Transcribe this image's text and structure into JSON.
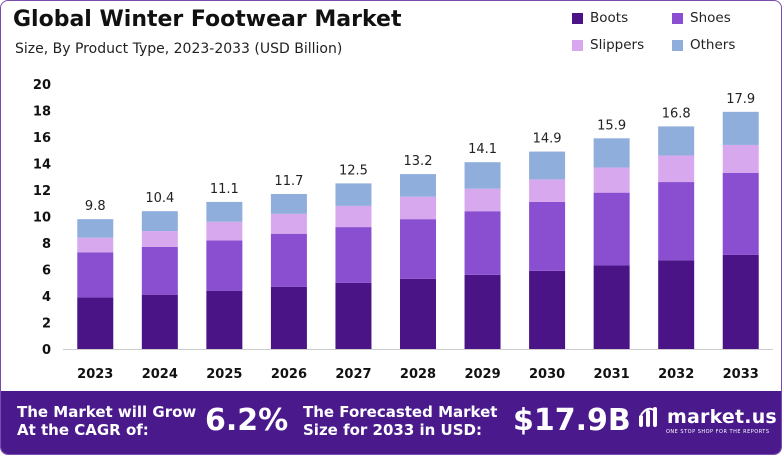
{
  "header": {
    "title": "Global Winter Footwear Market",
    "subtitle": "Size, By Product Type, 2023-2033 (USD Billion)"
  },
  "legend": [
    {
      "label": "Boots",
      "color": "#4a1486"
    },
    {
      "label": "Shoes",
      "color": "#8a4fd0"
    },
    {
      "label": "Slippers",
      "color": "#d8a8ee"
    },
    {
      "label": "Others",
      "color": "#8faedc"
    }
  ],
  "chart_data": {
    "type": "bar",
    "stacked": true,
    "title": "Global Winter Footwear Market",
    "subtitle": "Size, By Product Type, 2023-2033 (USD Billion)",
    "xlabel": "",
    "ylabel": "",
    "ylim": [
      0,
      20
    ],
    "yticks": [
      0,
      2,
      4,
      6,
      8,
      10,
      12,
      14,
      16,
      18,
      20
    ],
    "categories": [
      "2023",
      "2024",
      "2025",
      "2026",
      "2027",
      "2028",
      "2029",
      "2030",
      "2031",
      "2032",
      "2033"
    ],
    "series": [
      {
        "name": "Boots",
        "color": "#4a1486",
        "values": [
          3.9,
          4.1,
          4.4,
          4.7,
          5.0,
          5.3,
          5.6,
          5.9,
          6.3,
          6.7,
          7.1
        ]
      },
      {
        "name": "Shoes",
        "color": "#8a4fd0",
        "values": [
          3.4,
          3.6,
          3.8,
          4.0,
          4.2,
          4.5,
          4.8,
          5.2,
          5.5,
          5.9,
          6.2
        ]
      },
      {
        "name": "Slippers",
        "color": "#d8a8ee",
        "values": [
          1.1,
          1.2,
          1.4,
          1.5,
          1.6,
          1.7,
          1.7,
          1.7,
          1.9,
          2.0,
          2.1
        ]
      },
      {
        "name": "Others",
        "color": "#8faedc",
        "values": [
          1.4,
          1.5,
          1.5,
          1.5,
          1.7,
          1.7,
          2.0,
          2.1,
          2.2,
          2.2,
          2.5
        ]
      }
    ],
    "totals": [
      "9.8",
      "10.4",
      "11.1",
      "11.7",
      "12.5",
      "13.2",
      "14.1",
      "14.9",
      "15.9",
      "16.8",
      "17.9"
    ]
  },
  "footer": {
    "cagr_text_line1": "The Market will Grow",
    "cagr_text_line2": "At the CAGR of:",
    "cagr_value": "6.2%",
    "forecast_text_line1": "The Forecasted Market",
    "forecast_text_line2": "Size for 2033 in USD:",
    "forecast_value": "$17.9B",
    "brand_name": "market.us",
    "brand_tagline": "ONE STOP SHOP FOR THE REPORTS",
    "background_color": "#4a1a8c"
  }
}
